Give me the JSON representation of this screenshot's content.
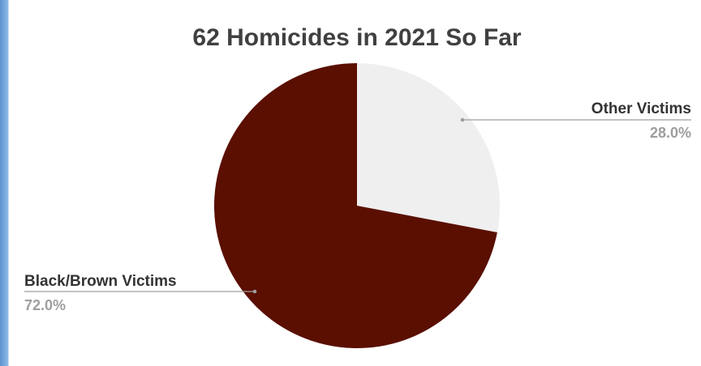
{
  "chart_data": {
    "type": "pie",
    "title": "62 Homicides in 2021 So Far",
    "start_angle_deg": 0,
    "direction": "clockwise",
    "slices": [
      {
        "label": "Other Victims",
        "value": 28.0,
        "display": "28.0%",
        "color": "#efefef"
      },
      {
        "label": "Black/Brown Victims",
        "value": 72.0,
        "display": "72.0%",
        "color": "#5a0f00"
      }
    ]
  }
}
